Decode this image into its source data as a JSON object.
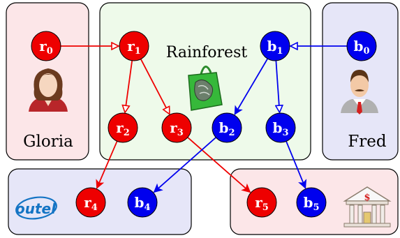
{
  "colors": {
    "red": "#ee0000",
    "blue": "#0000ee",
    "pink_region": "#fce6e8",
    "green_region": "#eefaea",
    "lavender_region": "#e6e6f8",
    "outel_blue": "#1474c4"
  },
  "regions": {
    "gloria": {
      "label": "Gloria"
    },
    "rainforest": {
      "label": "Rainforest"
    },
    "fred": {
      "label": "Fred"
    },
    "outel": {
      "label": "outel"
    },
    "bank": {
      "label": "$"
    }
  },
  "nodes": {
    "r0": {
      "base": "r",
      "sub": "0",
      "color": "red"
    },
    "r1": {
      "base": "r",
      "sub": "1",
      "color": "red"
    },
    "r2": {
      "base": "r",
      "sub": "2",
      "color": "red"
    },
    "r3": {
      "base": "r",
      "sub": "3",
      "color": "red"
    },
    "r4": {
      "base": "r",
      "sub": "4",
      "color": "red"
    },
    "r5": {
      "base": "r",
      "sub": "5",
      "color": "red"
    },
    "b0": {
      "base": "b",
      "sub": "0",
      "color": "blue"
    },
    "b1": {
      "base": "b",
      "sub": "1",
      "color": "blue"
    },
    "b2": {
      "base": "b",
      "sub": "2",
      "color": "blue"
    },
    "b3": {
      "base": "b",
      "sub": "3",
      "color": "blue"
    },
    "b4": {
      "base": "b",
      "sub": "4",
      "color": "blue"
    },
    "b5": {
      "base": "b",
      "sub": "5",
      "color": "blue"
    }
  },
  "edges": [
    {
      "from": "r0",
      "to": "r1",
      "color": "red"
    },
    {
      "from": "r1",
      "to": "r2",
      "color": "red"
    },
    {
      "from": "r1",
      "to": "r3",
      "color": "red"
    },
    {
      "from": "r2",
      "to": "r4",
      "color": "red"
    },
    {
      "from": "r3",
      "to": "r5",
      "color": "red"
    },
    {
      "from": "b0",
      "to": "b1",
      "color": "blue"
    },
    {
      "from": "b1",
      "to": "b2",
      "color": "blue"
    },
    {
      "from": "b1",
      "to": "b3",
      "color": "blue"
    },
    {
      "from": "b2",
      "to": "b4",
      "color": "blue"
    },
    {
      "from": "b3",
      "to": "b5",
      "color": "blue"
    }
  ]
}
